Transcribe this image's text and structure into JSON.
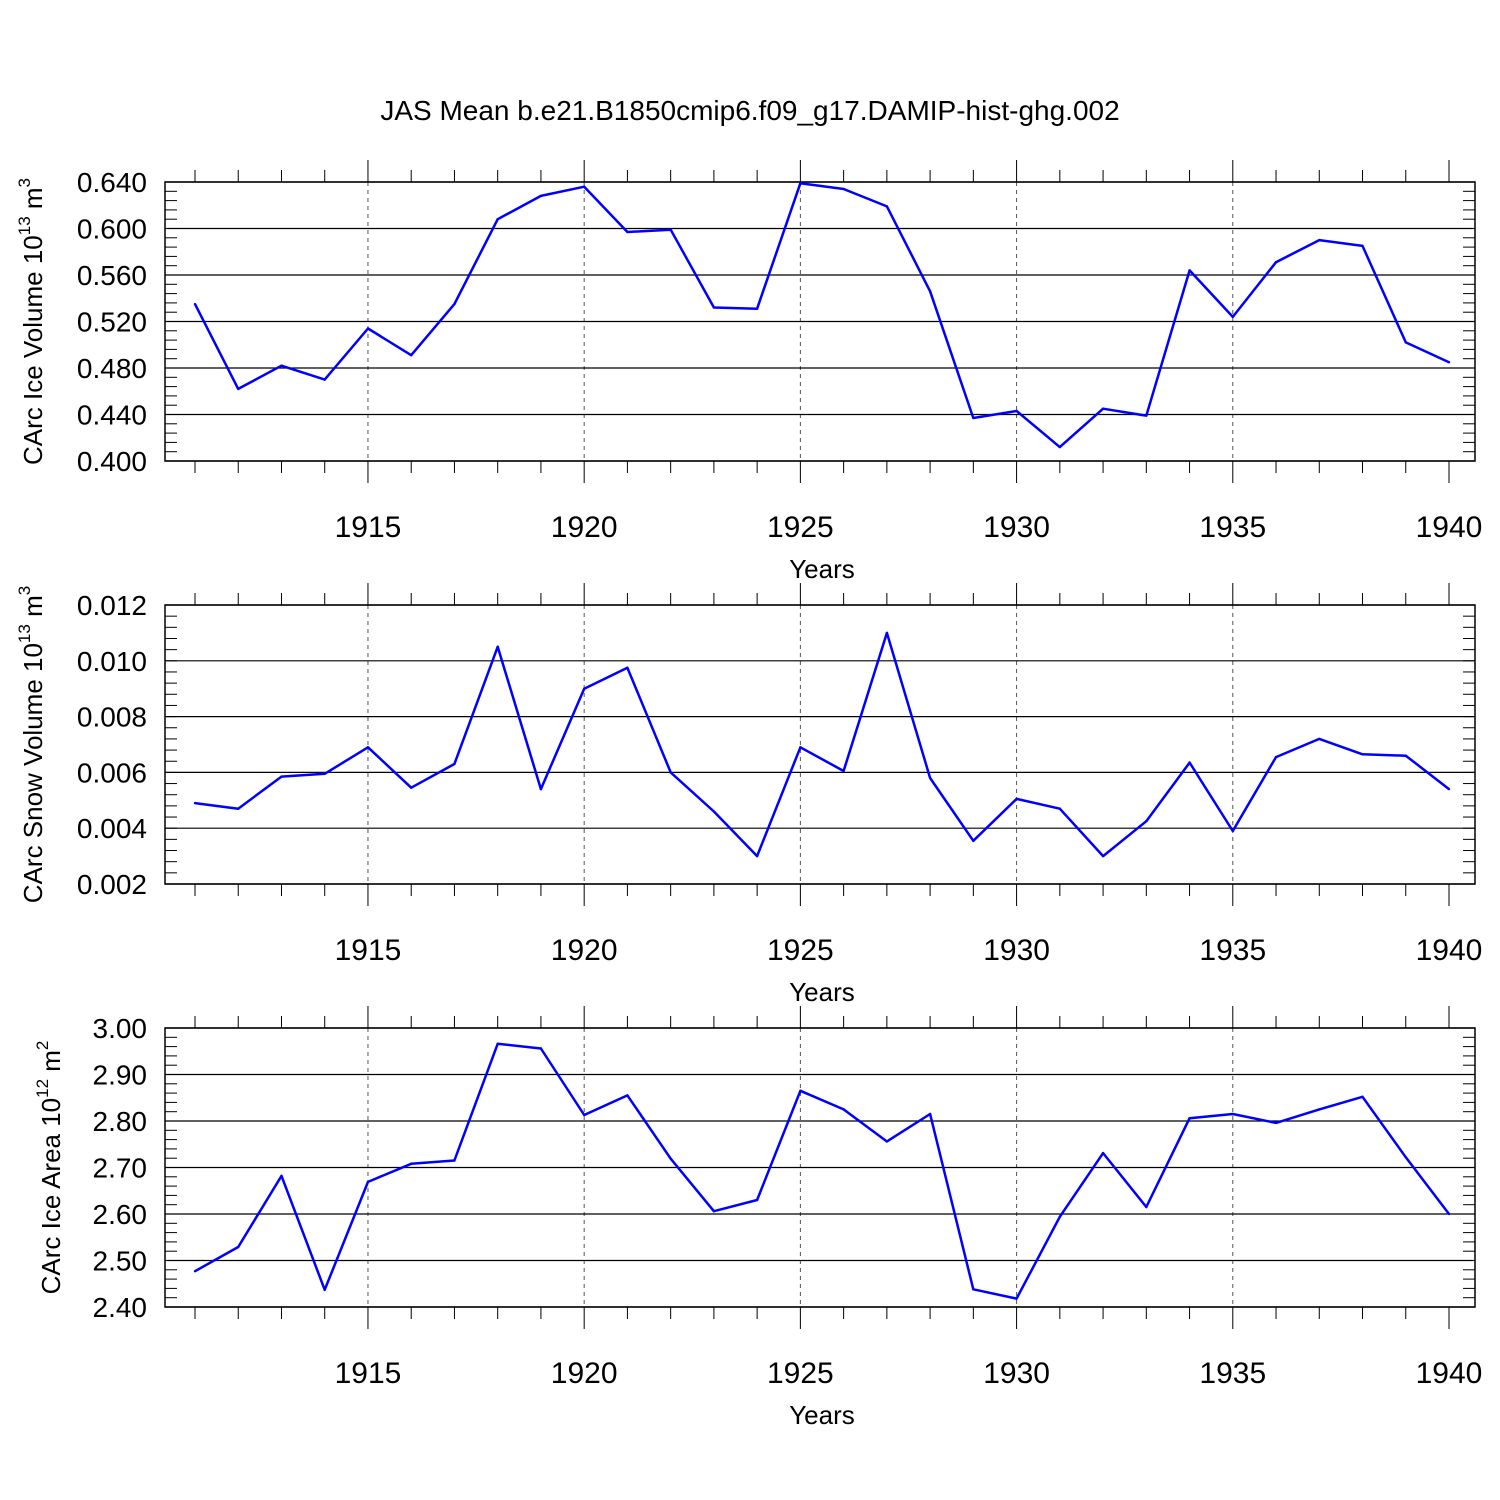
{
  "figure": {
    "title": "JAS Mean b.e21.B1850cmip6.f09_g17.DAMIP-hist-ghg.002"
  },
  "chart_data": [
    {
      "type": "line",
      "title": "",
      "xlabel": "Years",
      "ylabel": {
        "main": "CArc Ice Volume 10",
        "sup1": "13",
        "mid": " m",
        "sup2": "3"
      },
      "xlim": [
        1911,
        1940
      ],
      "ylim": [
        0.4,
        0.64
      ],
      "yticks": [
        0.4,
        0.44,
        0.48,
        0.52,
        0.56,
        0.6,
        0.64
      ],
      "ytick_labels": [
        "0.400",
        "0.440",
        "0.480",
        "0.520",
        "0.560",
        "0.600",
        "0.640"
      ],
      "xticks": [
        1915,
        1920,
        1925,
        1930,
        1935,
        1940
      ],
      "xtick_labels": [
        "1915",
        "1920",
        "1925",
        "1930",
        "1935",
        "1940"
      ],
      "grid": "vertical dashed at labeled years",
      "line_color": "#0000ff",
      "series": [
        {
          "x": [
            1911,
            1912,
            1913,
            1914,
            1915,
            1916,
            1917,
            1918,
            1919,
            1920,
            1921,
            1922,
            1923,
            1924,
            1925,
            1926,
            1927,
            1928,
            1929,
            1930,
            1931,
            1932,
            1933,
            1934,
            1935,
            1936,
            1937,
            1938,
            1939,
            1940
          ],
          "values": [
            0.535,
            0.462,
            0.482,
            0.47,
            0.514,
            0.491,
            0.535,
            0.608,
            0.628,
            0.636,
            0.597,
            0.599,
            0.532,
            0.531,
            0.639,
            0.634,
            0.619,
            0.546,
            0.437,
            0.443,
            0.412,
            0.445,
            0.439,
            0.564,
            0.524,
            0.571,
            0.59,
            0.585,
            0.502,
            0.485
          ]
        }
      ]
    },
    {
      "type": "line",
      "title": "",
      "xlabel": "Years",
      "ylabel": {
        "main": "CArc Snow Volume 10",
        "sup1": "13",
        "mid": " m",
        "sup2": "3"
      },
      "xlim": [
        1911,
        1940
      ],
      "ylim": [
        0.002,
        0.012
      ],
      "yticks": [
        0.002,
        0.004,
        0.006,
        0.008,
        0.01,
        0.012
      ],
      "ytick_labels": [
        "0.002",
        "0.004",
        "0.006",
        "0.008",
        "0.010",
        "0.012"
      ],
      "xticks": [
        1915,
        1920,
        1925,
        1930,
        1935,
        1940
      ],
      "xtick_labels": [
        "1915",
        "1920",
        "1925",
        "1930",
        "1935",
        "1940"
      ],
      "grid": "vertical dashed at labeled years",
      "line_color": "#0000ff",
      "series": [
        {
          "x": [
            1911,
            1912,
            1913,
            1914,
            1915,
            1916,
            1917,
            1918,
            1919,
            1920,
            1921,
            1922,
            1923,
            1924,
            1925,
            1926,
            1927,
            1928,
            1929,
            1930,
            1931,
            1932,
            1933,
            1934,
            1935,
            1936,
            1937,
            1938,
            1939,
            1940
          ],
          "values": [
            0.0049,
            0.0047,
            0.00585,
            0.00595,
            0.0069,
            0.00545,
            0.0063,
            0.0105,
            0.0054,
            0.009,
            0.00975,
            0.006,
            0.0046,
            0.003,
            0.0069,
            0.00605,
            0.011,
            0.0058,
            0.00355,
            0.00505,
            0.0047,
            0.003,
            0.00425,
            0.00635,
            0.0039,
            0.00655,
            0.0072,
            0.00665,
            0.0066,
            0.0054
          ]
        }
      ]
    },
    {
      "type": "line",
      "title": "",
      "xlabel": "Years",
      "ylabel": {
        "main": "CArc Ice Area 10",
        "sup1": "12",
        "mid": " m",
        "sup2": "2"
      },
      "xlim": [
        1911,
        1940
      ],
      "ylim": [
        2.4,
        3.0
      ],
      "yticks": [
        2.4,
        2.5,
        2.6,
        2.7,
        2.8,
        2.9,
        3.0
      ],
      "ytick_labels": [
        "2.40",
        "2.50",
        "2.60",
        "2.70",
        "2.80",
        "2.90",
        "3.00"
      ],
      "xticks": [
        1915,
        1920,
        1925,
        1930,
        1935,
        1940
      ],
      "xtick_labels": [
        "1915",
        "1920",
        "1925",
        "1930",
        "1935",
        "1940"
      ],
      "grid": "vertical dashed at labeled years",
      "line_color": "#0000ff",
      "series": [
        {
          "x": [
            1911,
            1912,
            1913,
            1914,
            1915,
            1916,
            1917,
            1918,
            1919,
            1920,
            1921,
            1922,
            1923,
            1924,
            1925,
            1926,
            1927,
            1928,
            1929,
            1930,
            1931,
            1932,
            1933,
            1934,
            1935,
            1936,
            1937,
            1938,
            1939,
            1940
          ],
          "values": [
            2.477,
            2.529,
            2.682,
            2.437,
            2.669,
            2.708,
            2.715,
            2.966,
            2.956,
            2.813,
            2.855,
            2.719,
            2.606,
            2.63,
            2.865,
            2.825,
            2.756,
            2.815,
            2.438,
            2.418,
            2.594,
            2.731,
            2.615,
            2.806,
            2.815,
            2.796,
            2.825,
            2.852,
            2.722,
            2.6
          ]
        }
      ]
    }
  ]
}
